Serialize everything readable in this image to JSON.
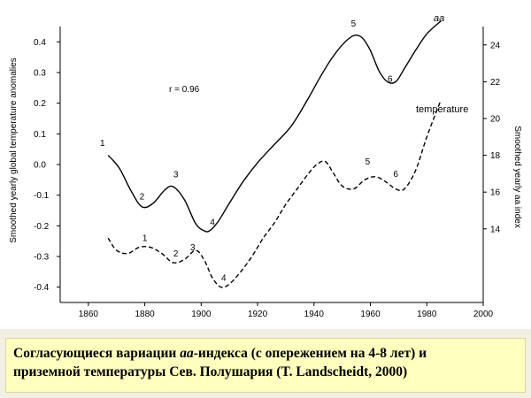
{
  "chart_data": {
    "type": "line",
    "xlabel": "",
    "ylabel_left": "Smoothed yearly global temperature anomalies",
    "ylabel_right": "Smoothed yearly aa index",
    "xlim": [
      1850,
      2000
    ],
    "ylim_left": [
      -0.45,
      0.45
    ],
    "ylim_right": [
      10,
      25
    ],
    "x_ticks": [
      1860,
      1880,
      1900,
      1920,
      1940,
      1960,
      1980,
      2000
    ],
    "y_left_ticks": [
      -0.4,
      -0.3,
      -0.2,
      -0.1,
      0.0,
      0.1,
      0.2,
      0.3,
      0.4
    ],
    "y_left_tick_labels": [
      "-0.4",
      "-0.3",
      "-0.2",
      "-0.1",
      "0.0",
      "0.1",
      "0.2",
      "0.3",
      "0.4"
    ],
    "y_right_ticks": [
      14,
      16,
      18,
      20,
      22,
      24
    ],
    "y_right_tick_labels": [
      "14",
      "16",
      "18",
      "20",
      "22",
      "24"
    ],
    "annotation": "r = 0.96",
    "series": [
      {
        "name": "aa",
        "axis": "right",
        "style": "solid",
        "x": [
          1867,
          1871,
          1875,
          1879,
          1883,
          1887,
          1890,
          1894,
          1898,
          1901,
          1903,
          1906,
          1910,
          1915,
          1920,
          1926,
          1932,
          1938,
          1942,
          1946,
          1950,
          1954,
          1957,
          1960,
          1963,
          1966,
          1969,
          1972,
          1976,
          1980,
          1985
        ],
        "y": [
          18.0,
          17.3,
          16.1,
          15.2,
          15.4,
          16.1,
          16.3,
          15.6,
          14.3,
          13.9,
          13.9,
          14.4,
          15.4,
          16.6,
          17.6,
          18.6,
          19.6,
          21.1,
          22.2,
          23.2,
          24.0,
          24.5,
          24.4,
          23.7,
          22.6,
          22.0,
          22.0,
          22.7,
          23.7,
          24.6,
          25.3
        ]
      },
      {
        "name": "temperature",
        "axis": "left",
        "style": "dashed",
        "x": [
          1867,
          1870,
          1874,
          1878,
          1882,
          1886,
          1890,
          1894,
          1898,
          1901,
          1904,
          1907,
          1910,
          1914,
          1918,
          1922,
          1926,
          1930,
          1934,
          1938,
          1941,
          1944,
          1947,
          1950,
          1954,
          1958,
          1962,
          1966,
          1969,
          1972,
          1976,
          1980,
          1985
        ],
        "y": [
          -0.24,
          -0.28,
          -0.29,
          -0.27,
          -0.27,
          -0.29,
          -0.32,
          -0.31,
          -0.28,
          -0.31,
          -0.37,
          -0.4,
          -0.39,
          -0.35,
          -0.3,
          -0.24,
          -0.19,
          -0.13,
          -0.08,
          -0.03,
          0.0,
          0.01,
          -0.03,
          -0.07,
          -0.08,
          -0.05,
          -0.04,
          -0.06,
          -0.08,
          -0.08,
          -0.02,
          0.09,
          0.21
        ]
      }
    ],
    "markers": [
      {
        "series": "aa",
        "label": "1",
        "x": 1865,
        "y": 18.5
      },
      {
        "series": "aa",
        "label": "2",
        "x": 1879,
        "y": 15.6
      },
      {
        "series": "aa",
        "label": "3",
        "x": 1891,
        "y": 16.8
      },
      {
        "series": "aa",
        "label": "4",
        "x": 1904,
        "y": 14.2
      },
      {
        "series": "aa",
        "label": "5",
        "x": 1954,
        "y": 25.0
      },
      {
        "series": "aa",
        "label": "6",
        "x": 1967,
        "y": 22.0
      },
      {
        "series": "temperature",
        "label": "1",
        "x": 1880,
        "y": -0.25
      },
      {
        "series": "temperature",
        "label": "2",
        "x": 1891,
        "y": -0.3
      },
      {
        "series": "temperature",
        "label": "3",
        "x": 1897,
        "y": -0.28
      },
      {
        "series": "temperature",
        "label": "4",
        "x": 1908,
        "y": -0.38
      },
      {
        "series": "temperature",
        "label": "5",
        "x": 1959,
        "y": 0.0
      },
      {
        "series": "temperature",
        "label": "6",
        "x": 1969,
        "y": -0.04
      }
    ]
  },
  "caption": {
    "part1": "Согласующиеся вариации ",
    "italic": "aa",
    "part2": "-индекса (с опережением на 4-8 лет) и",
    "line2": "приземной температуры Сев. Полушария (T. Landscheidt, 2000)"
  }
}
